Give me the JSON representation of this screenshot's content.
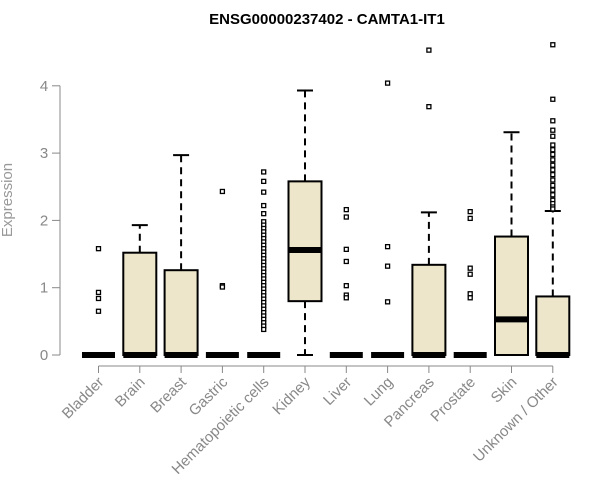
{
  "chart_data": {
    "type": "boxplot",
    "title": "ENSG00000237402 - CAMTA1-IT1",
    "xlabel": "",
    "ylabel": "Expression",
    "ylim": [
      0,
      4.6
    ],
    "yticks": [
      0,
      1,
      2,
      3,
      4
    ],
    "grid": false,
    "colors": {
      "box_fill": "#ede6cb",
      "stroke": "#000000",
      "axis": "#888888"
    },
    "categories": [
      "Bladder",
      "Brain",
      "Breast",
      "Gastric",
      "Hematopoietic cells",
      "Kidney",
      "Liver",
      "Lung",
      "Pancreas",
      "Prostate",
      "Skin",
      "Unknown / Other"
    ],
    "boxes": [
      {
        "category": "Bladder",
        "q1": 0,
        "median": 0,
        "q3": 0,
        "whisker_low": 0,
        "whisker_high": 0,
        "outliers": [
          1.58,
          0.93,
          0.84,
          0.65
        ]
      },
      {
        "category": "Brain",
        "q1": 0,
        "median": 0,
        "q3": 1.52,
        "whisker_low": 0,
        "whisker_high": 1.93,
        "outliers": []
      },
      {
        "category": "Breast",
        "q1": 0,
        "median": 0,
        "q3": 1.26,
        "whisker_low": 0,
        "whisker_high": 2.97,
        "outliers": []
      },
      {
        "category": "Gastric",
        "q1": 0,
        "median": 0,
        "q3": 0,
        "whisker_low": 0,
        "whisker_high": 0,
        "outliers": [
          2.43,
          1.03,
          1.01
        ]
      },
      {
        "category": "Hematopoietic cells",
        "q1": 0,
        "median": 0,
        "q3": 0,
        "whisker_low": 0,
        "whisker_high": 0,
        "outliers": [
          2.72,
          2.58,
          2.42,
          2.22,
          2.1,
          1.98,
          1.93,
          1.88,
          1.83,
          1.78,
          1.73,
          1.68,
          1.63,
          1.58,
          1.53,
          1.48,
          1.43,
          1.38,
          1.33,
          1.28,
          1.23,
          1.18,
          1.13,
          1.08,
          1.03,
          0.98,
          0.93,
          0.88,
          0.83,
          0.78,
          0.73,
          0.68,
          0.63,
          0.58,
          0.53,
          0.48,
          0.43,
          0.38
        ]
      },
      {
        "category": "Kidney",
        "q1": 0.8,
        "median": 1.56,
        "q3": 2.58,
        "whisker_low": 0,
        "whisker_high": 3.93,
        "outliers": []
      },
      {
        "category": "Liver",
        "q1": 0,
        "median": 0,
        "q3": 0,
        "whisker_low": 0,
        "whisker_high": 0,
        "outliers": [
          2.16,
          2.05,
          1.57,
          1.39,
          1.03,
          0.89,
          0.85
        ]
      },
      {
        "category": "Lung",
        "q1": 0,
        "median": 0,
        "q3": 0,
        "whisker_low": 0,
        "whisker_high": 0,
        "outliers": [
          4.04,
          1.61,
          1.32,
          0.79
        ]
      },
      {
        "category": "Pancreas",
        "q1": 0,
        "median": 0,
        "q3": 1.34,
        "whisker_low": 0,
        "whisker_high": 2.12,
        "outliers": [
          4.53,
          3.69
        ]
      },
      {
        "category": "Prostate",
        "q1": 0,
        "median": 0,
        "q3": 0,
        "whisker_low": 0,
        "whisker_high": 0,
        "outliers": [
          2.13,
          2.03,
          1.29,
          1.2,
          0.91,
          0.85
        ]
      },
      {
        "category": "Skin",
        "q1": 0,
        "median": 0.53,
        "q3": 1.76,
        "whisker_low": 0,
        "whisker_high": 3.31,
        "outliers": []
      },
      {
        "category": "Unknown / Other",
        "q1": 0,
        "median": 0,
        "q3": 0.87,
        "whisker_low": 0,
        "whisker_high": 2.14,
        "outliers": [
          4.61,
          3.8,
          3.48,
          3.34,
          3.25,
          3.12,
          3.05,
          2.98,
          2.9,
          2.82,
          2.75,
          2.68,
          2.6,
          2.52,
          2.45,
          2.38,
          2.3,
          2.25,
          2.2,
          2.17
        ]
      }
    ]
  }
}
